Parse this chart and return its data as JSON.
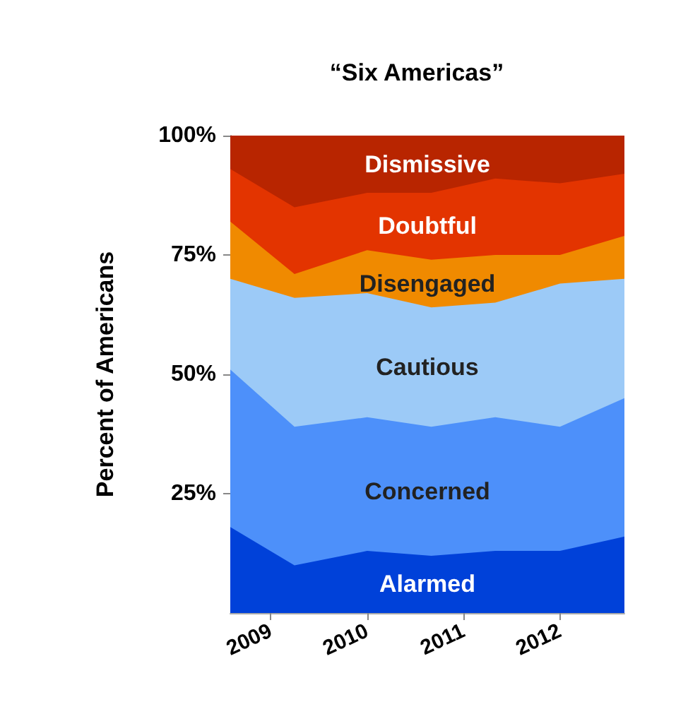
{
  "chart_data": {
    "type": "area",
    "title": "“Six Americas”",
    "ylabel": "Percent of Americans",
    "stacked": true,
    "x": [
      "2008-08",
      "2009-04",
      "2010-01",
      "2010-09",
      "2011-05",
      "2012-01",
      "2012-09"
    ],
    "xlim": [
      "2008-08",
      "2012-09"
    ],
    "xticks": [
      {
        "value": "2009",
        "label": "2009"
      },
      {
        "value": "2010",
        "label": "2010"
      },
      {
        "value": "2011",
        "label": "2011"
      },
      {
        "value": "2012",
        "label": "2012"
      }
    ],
    "ylim": [
      0,
      100
    ],
    "yticks": [
      {
        "value": 25,
        "label": "25%"
      },
      {
        "value": 50,
        "label": "50%"
      },
      {
        "value": 75,
        "label": "75%"
      },
      {
        "value": 100,
        "label": "100%"
      }
    ],
    "series": [
      {
        "name": "Alarmed",
        "color": "#0041d9",
        "values": [
          18,
          10,
          13,
          12,
          13,
          13,
          16
        ]
      },
      {
        "name": "Concerned",
        "color": "#4d90fa",
        "values": [
          33,
          29,
          28,
          27,
          28,
          26,
          29
        ]
      },
      {
        "name": "Cautious",
        "color": "#9ccaf7",
        "values": [
          19,
          27,
          26,
          25,
          24,
          30,
          25
        ]
      },
      {
        "name": "Disengaged",
        "color": "#f08a00",
        "values": [
          12,
          5,
          9,
          10,
          10,
          6,
          9
        ]
      },
      {
        "name": "Doubtful",
        "color": "#e33400",
        "values": [
          11,
          14,
          12,
          14,
          16,
          15,
          13
        ]
      },
      {
        "name": "Dismissive",
        "color": "#b82500",
        "values": [
          7,
          15,
          12,
          12,
          9,
          10,
          8
        ]
      }
    ]
  }
}
